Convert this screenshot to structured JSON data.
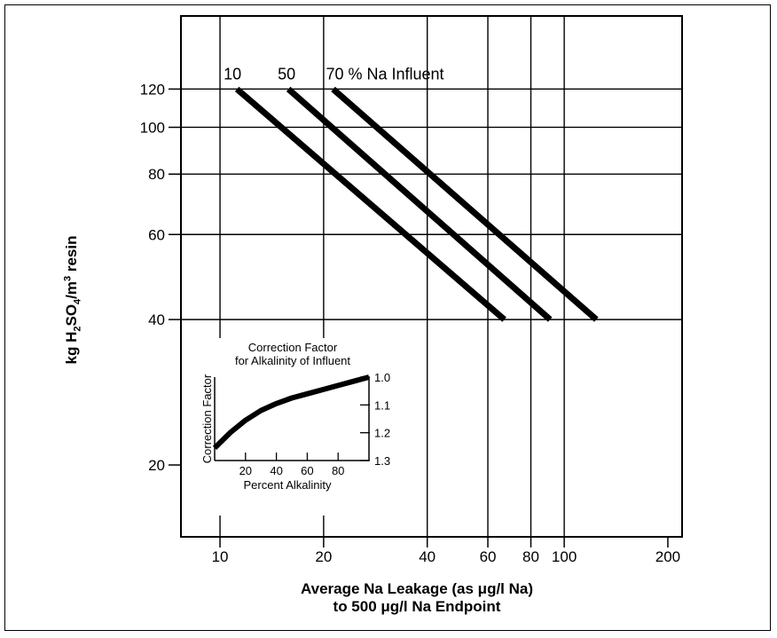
{
  "chart_data": [
    {
      "type": "line",
      "title": "",
      "xlabel_line1": "Average Na Leakage (as μg/l Na)",
      "xlabel_line2": "to 500 μg/l Na Endpoint",
      "ylabel_prefix": "kg H",
      "ylabel_sub1": "2",
      "ylabel_mid": "SO",
      "ylabel_sub2": "4",
      "ylabel_mid2": "/m",
      "ylabel_sup": "3",
      "ylabel_suffix": " resin",
      "x_scale": "log",
      "y_scale": "log",
      "xlim": [
        7.7,
        220
      ],
      "ylim": [
        14.2,
        170
      ],
      "x_ticks": [
        10,
        20,
        40,
        60,
        80,
        100,
        200
      ],
      "x_tick_labels": [
        "10",
        "20",
        "40",
        "60",
        "80",
        "100",
        "200"
      ],
      "y_ticks": [
        20,
        40,
        60,
        80,
        100,
        120
      ],
      "y_tick_labels": [
        "20",
        "40",
        "60",
        "80",
        "100",
        "120"
      ],
      "x_grid": [
        10,
        20,
        40,
        60,
        80,
        100
      ],
      "y_grid": [
        40,
        60,
        80,
        100,
        120
      ],
      "grid": true,
      "legend_label": "70 % Na Influent",
      "series": [
        {
          "name": "10",
          "x": [
            11.2,
            67
          ],
          "y": [
            120,
            40
          ]
        },
        {
          "name": "50",
          "x": [
            15.8,
            91
          ],
          "y": [
            120,
            40
          ]
        },
        {
          "name": "70",
          "x": [
            21.3,
            124
          ],
          "y": [
            120,
            40
          ]
        }
      ]
    },
    {
      "type": "line",
      "title_line1": "Correction Factor",
      "title_line2": "for Alkalinity of Influent",
      "xlabel": "Percent Alkalinity",
      "ylabel": "Correction Factor",
      "xlim": [
        0,
        100
      ],
      "ylim": [
        1.0,
        1.3
      ],
      "y_inverted": true,
      "y_axis_side": "right",
      "x_ticks": [
        20,
        40,
        60,
        80
      ],
      "x_tick_labels": [
        "20",
        "40",
        "60",
        "80"
      ],
      "y_ticks": [
        1.0,
        1.1,
        1.2,
        1.3
      ],
      "y_tick_labels": [
        "1.0",
        "1.1",
        "1.2",
        "1.3"
      ],
      "series": [
        {
          "name": "",
          "x": [
            0,
            10,
            20,
            30,
            40,
            50,
            60,
            70,
            80,
            90,
            100
          ],
          "y": [
            1.255,
            1.2,
            1.155,
            1.12,
            1.095,
            1.075,
            1.06,
            1.045,
            1.03,
            1.015,
            1.0
          ]
        }
      ]
    }
  ]
}
